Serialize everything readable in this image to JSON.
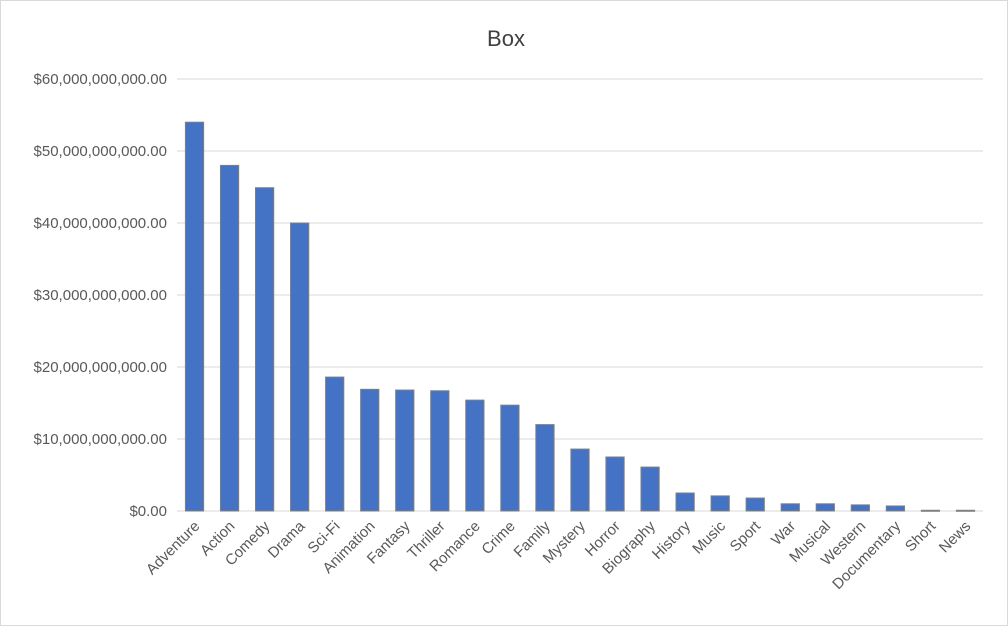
{
  "chart_data": {
    "type": "bar",
    "title": "Box",
    "xlabel": "",
    "ylabel": "",
    "categories": [
      "Adventure",
      "Action",
      "Comedy",
      "Drama",
      "Sci-Fi",
      "Animation",
      "Fantasy",
      "Thriller",
      "Romance",
      "Crime",
      "Family",
      "Mystery",
      "Horror",
      "Biography",
      "History",
      "Music",
      "Sport",
      "War",
      "Musical",
      "Western",
      "Documentary",
      "Short",
      "News"
    ],
    "values": [
      54000000000,
      48000000000,
      44900000000,
      40000000000,
      18600000000,
      16900000000,
      16800000000,
      16700000000,
      15400000000,
      14700000000,
      12000000000,
      8600000000,
      7500000000,
      6100000000,
      2500000000,
      2100000000,
      1800000000,
      1000000000,
      1000000000,
      850000000,
      700000000,
      100000000,
      100000000
    ],
    "yticks": [
      "$0.00",
      "$10,000,000,000.00",
      "$20,000,000,000.00",
      "$30,000,000,000.00",
      "$40,000,000,000.00",
      "$50,000,000,000.00",
      "$60,000,000,000.00"
    ],
    "ylim": [
      0,
      60000000000
    ],
    "grid": true,
    "legend": "none",
    "bar_color": "#4472c4"
  }
}
